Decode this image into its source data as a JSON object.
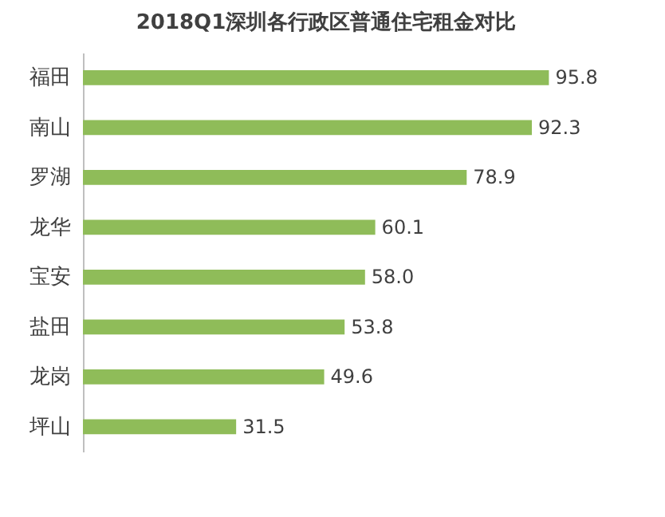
{
  "chart_data": {
    "type": "bar",
    "orientation": "horizontal",
    "title": "2018Q1深圳各行政区普通住宅租金对比",
    "categories": [
      "福田",
      "南山",
      "罗湖",
      "龙华",
      "宝安",
      "盐田",
      "龙岗",
      "坪山"
    ],
    "values": [
      95.8,
      92.3,
      78.9,
      60.1,
      58.0,
      53.8,
      49.6,
      31.5
    ],
    "value_labels": [
      "95.8",
      "92.3",
      "78.9",
      "60.1",
      "58.0",
      "53.8",
      "49.6",
      "31.5"
    ],
    "color": "#8fbc59"
  }
}
